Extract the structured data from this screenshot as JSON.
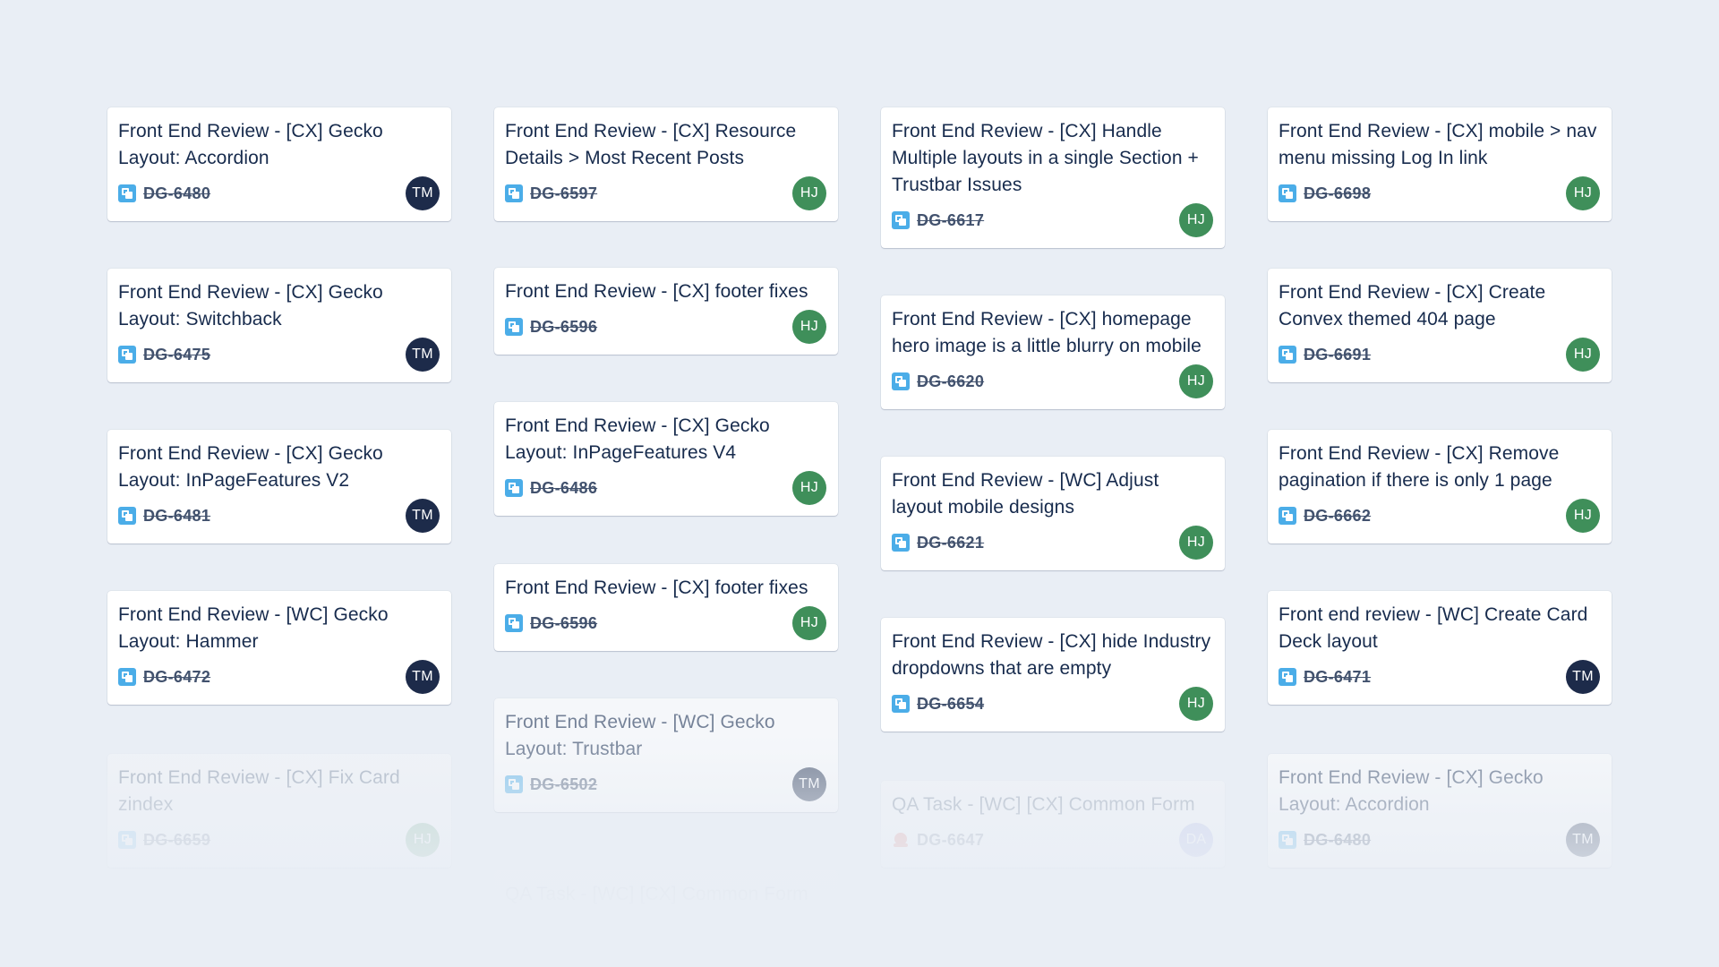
{
  "colors": {
    "background": "#e9eef5",
    "card": "#ffffff",
    "title_text": "#172b4d",
    "key_text": "#42526e",
    "task_icon": "#4bade8",
    "bug_icon": "#e5493a",
    "avatar_TM": "#1d2b4a",
    "avatar_HJ": "#3f8f5a",
    "avatar_DA": "#8a95e0"
  },
  "columns": [
    {
      "cards": [
        {
          "title": "Front End Review - [CX] Gecko Layout: Accordion",
          "key": "DG-6480",
          "type_icon": "task-icon",
          "assignee": "TM"
        },
        {
          "title": "Front End Review - [CX] Gecko Layout: Switchback",
          "key": "DG-6475",
          "type_icon": "task-icon",
          "assignee": "TM"
        },
        {
          "title": "Front End Review - [CX] Gecko Layout: InPageFeatures V2",
          "key": "DG-6481",
          "type_icon": "task-icon",
          "assignee": "TM"
        },
        {
          "title": "Front End Review - [WC] Gecko Layout: Hammer",
          "key": "DG-6472",
          "type_icon": "task-icon",
          "assignee": "TM"
        },
        {
          "title": "Front End Review - [CX] Fix Card zindex",
          "key": "DG-6659",
          "type_icon": "task-icon",
          "assignee": "HJ"
        }
      ]
    },
    {
      "cards": [
        {
          "title": "Front End Review - [CX] Resource Details > Most Recent Posts",
          "key": "DG-6597",
          "type_icon": "task-icon",
          "assignee": "HJ"
        },
        {
          "title": "Front End Review - [CX] footer fixes",
          "key": "DG-6596",
          "type_icon": "task-icon",
          "assignee": "HJ"
        },
        {
          "title": "Front End Review - [CX] Gecko Layout: InPageFeatures V4",
          "key": "DG-6486",
          "type_icon": "task-icon",
          "assignee": "HJ"
        },
        {
          "title": "Front End Review - [CX] footer fixes",
          "key": "DG-6596",
          "type_icon": "task-icon",
          "assignee": "HJ"
        },
        {
          "title": "Front End Review - [WC] Gecko Layout: Trustbar",
          "key": "DG-6502",
          "type_icon": "task-icon",
          "assignee": "TM"
        },
        {
          "title": "QA Task - [WC] [CX] Common Form",
          "key": "",
          "type_icon": "",
          "assignee": ""
        }
      ]
    },
    {
      "cards": [
        {
          "title": "Front End Review - [CX] Handle Multiple layouts in a single Section + Trustbar Issues",
          "key": "DG-6617",
          "type_icon": "task-icon",
          "assignee": "HJ"
        },
        {
          "title": "Front End Review - [CX] homepage hero image is a little blurry on mobile",
          "key": "DG-6620",
          "type_icon": "task-icon",
          "assignee": "HJ"
        },
        {
          "title": "Front End Review - [WC] Adjust layout mobile designs",
          "key": "DG-6621",
          "type_icon": "task-icon",
          "assignee": "HJ"
        },
        {
          "title": "Front End Review - [CX] hide Industry dropdowns that are empty",
          "key": "DG-6654",
          "type_icon": "task-icon",
          "assignee": "HJ"
        },
        {
          "title": "QA Task - [WC] [CX] Common Form",
          "key": "DG-6647",
          "type_icon": "bug-icon",
          "assignee": "DA"
        }
      ]
    },
    {
      "cards": [
        {
          "title": "Front End Review - [CX] mobile > nav menu missing Log In link",
          "key": "DG-6698",
          "type_icon": "task-icon",
          "assignee": "HJ"
        },
        {
          "title": "Front End Review - [CX] Create Convex themed 404 page",
          "key": "DG-6691",
          "type_icon": "task-icon",
          "assignee": "HJ"
        },
        {
          "title": "Front End Review - [CX] Remove pagination if there is only 1 page",
          "key": "DG-6662",
          "type_icon": "task-icon",
          "assignee": "HJ"
        },
        {
          "title": "Front end review - [WC] Create Card Deck layout",
          "key": "DG-6471",
          "type_icon": "task-icon",
          "assignee": "TM"
        },
        {
          "title": "Front End Review - [CX] Gecko Layout: Accordion",
          "key": "DG-6480",
          "type_icon": "task-icon",
          "assignee": "TM"
        }
      ]
    }
  ]
}
